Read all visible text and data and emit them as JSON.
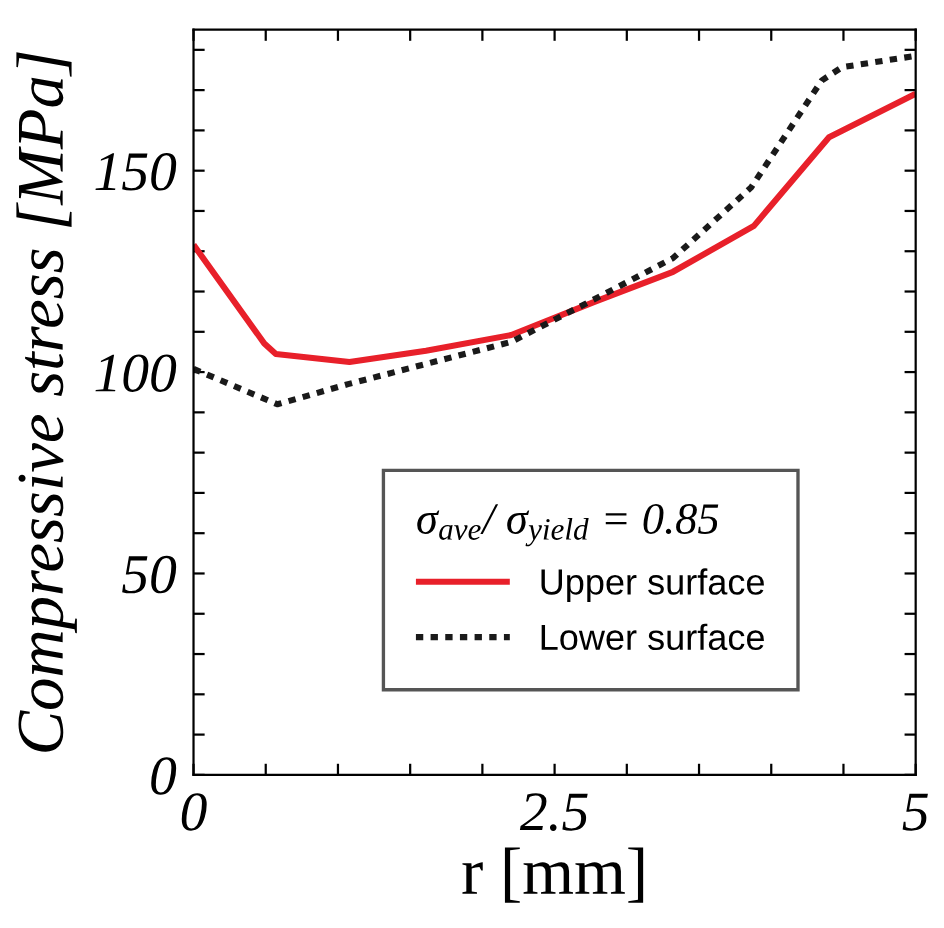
{
  "chart_data": {
    "type": "line",
    "xlabel": "r [mm]",
    "ylabel": "Compressive stress [MPa]",
    "legend_title": "σ$_{ave}$/ σ$_{yield}$ = 0.85",
    "xlim": [
      0,
      5
    ],
    "ylim": [
      0,
      185
    ],
    "xticks": [
      0,
      {
        "value": 0.5,
        "label": null
      },
      {
        "value": 1,
        "label": null
      },
      {
        "value": 1.5,
        "label": null
      },
      {
        "value": 2,
        "label": null
      },
      2.5,
      {
        "value": 3,
        "label": null
      },
      {
        "value": 3.5,
        "label": null
      },
      {
        "value": 4,
        "label": null
      },
      {
        "value": 4.5,
        "label": null
      },
      5
    ],
    "yticks": [
      0,
      {
        "value": 10,
        "label": null
      },
      {
        "value": 20,
        "label": null
      },
      {
        "value": 30,
        "label": null
      },
      {
        "value": 40,
        "label": null
      },
      50,
      {
        "value": 60,
        "label": null
      },
      {
        "value": 70,
        "label": null
      },
      {
        "value": 80,
        "label": null
      },
      {
        "value": 90,
        "label": null
      },
      100,
      {
        "value": 110,
        "label": null
      },
      {
        "value": 120,
        "label": null
      },
      {
        "value": 130,
        "label": null
      },
      {
        "value": 140,
        "label": null
      },
      150,
      {
        "value": 160,
        "label": null
      },
      {
        "value": 170,
        "label": null
      },
      {
        "value": 180,
        "label": null
      }
    ],
    "grid": false,
    "legend": "bottom",
    "series": [
      {
        "name": "Upper surface",
        "color": "#e8202a",
        "line_style": "solid",
        "x": [
          0,
          0.49,
          0.57,
          1.08,
          1.61,
          2.2,
          2.78,
          3.32,
          3.88,
          4.4,
          4.49,
          5
        ],
        "values": [
          131.6,
          107.1,
          104.5,
          102.5,
          105.3,
          109.2,
          117.5,
          124.9,
          136.3,
          158.3,
          159.9,
          169.1
        ]
      },
      {
        "name": "Lower surface",
        "color": "#1a1a1a",
        "line_style": "dotted",
        "x": [
          0,
          0.58,
          1.07,
          2.2,
          2.83,
          3.32,
          3.86,
          4.35,
          4.49,
          5
        ],
        "values": [
          100.8,
          92,
          97,
          107.5,
          119.1,
          128.3,
          145.8,
          172.4,
          175.7,
          178.5
        ]
      }
    ]
  }
}
